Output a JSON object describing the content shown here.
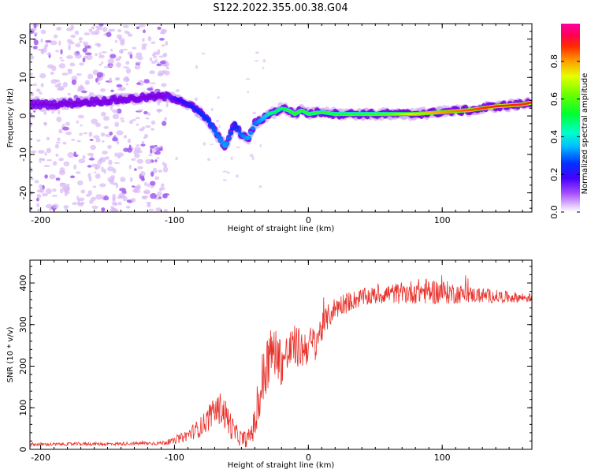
{
  "title": "S122.2022.355.00.38.G04",
  "colors": {
    "snr_line": "#e8302a",
    "spectrogram_low": "#d9b8f5",
    "spectrogram_mid": "#7a00e6",
    "ridge_peak": "#ff2020"
  },
  "chart_data": [
    {
      "type": "heatmap",
      "name": "spectrogram",
      "xlabel": "Height of straight line (km)",
      "ylabel": "Frequency (Hz)",
      "xlim": [
        -208,
        167
      ],
      "ylim": [
        -25,
        24
      ],
      "xticks": [
        -200,
        -100,
        0,
        100
      ],
      "yticks": [
        -20,
        -10,
        0,
        10,
        20
      ],
      "colorbar": {
        "label": "Normalized spectral amplitude",
        "ticks": [
          0.0,
          0.2,
          0.4,
          0.6,
          0.8
        ],
        "tick_labels": [
          "0.0",
          "0.2",
          "0.4",
          "0.6",
          "0.8"
        ],
        "range": [
          0,
          1
        ],
        "colormap": "hsv-like (purple-blue-cyan-green-yellow-red-magenta)"
      },
      "ridge": {
        "x": [
          -208,
          -190,
          -170,
          -150,
          -130,
          -115,
          -105,
          -95,
          -85,
          -75,
          -68,
          -62,
          -55,
          -50,
          -45,
          -40,
          -35,
          -30,
          -25,
          -20,
          -15,
          -10,
          -5,
          0,
          10,
          20,
          40,
          60,
          80,
          100,
          120,
          140,
          160,
          167
        ],
        "y": [
          3,
          3,
          3.5,
          4,
          4.5,
          5,
          5,
          4,
          2,
          -1,
          -5,
          -8,
          -2,
          -5,
          -6,
          -2,
          -1,
          0.5,
          1,
          2,
          1.5,
          0.5,
          1.5,
          0.5,
          1,
          0.5,
          0.5,
          0.5,
          0.5,
          1,
          1.5,
          2.5,
          3,
          3.5
        ],
        "amplitude": [
          0.05,
          0.05,
          0.08,
          0.1,
          0.12,
          0.15,
          0.2,
          0.25,
          0.3,
          0.35,
          0.4,
          0.45,
          0.3,
          0.4,
          0.45,
          0.4,
          0.45,
          0.5,
          0.5,
          0.5,
          0.55,
          0.55,
          0.55,
          0.55,
          0.55,
          0.55,
          0.55,
          0.6,
          0.75,
          0.8,
          0.85,
          0.9,
          0.9,
          0.9
        ]
      },
      "noise": {
        "x_range": [
          -208,
          -105
        ],
        "y_range": [
          -25,
          24
        ],
        "amplitude": 0.02
      }
    },
    {
      "type": "line",
      "name": "snr",
      "xlabel": "Height of straight line (km)",
      "ylabel": "SNR (10 * v/v)",
      "xlim": [
        -208,
        167
      ],
      "ylim": [
        0,
        455
      ],
      "xticks": [
        -200,
        -100,
        0,
        100
      ],
      "yticks": [
        0,
        100,
        200,
        300,
        400
      ],
      "series": [
        {
          "x": [
            -208,
            -190,
            -170,
            -150,
            -130,
            -110,
            -100,
            -90,
            -80,
            -70,
            -65,
            -60,
            -55,
            -50,
            -45,
            -40,
            -35,
            -30,
            -25,
            -20,
            -15,
            -10,
            -5,
            0,
            5,
            10,
            15,
            20,
            25,
            30,
            40,
            50,
            60,
            70,
            80,
            90,
            100,
            110,
            120,
            130,
            140,
            150,
            160,
            167
          ],
          "y": [
            12,
            12,
            13,
            13,
            14,
            15,
            20,
            35,
            55,
            90,
            100,
            70,
            40,
            25,
            25,
            60,
            150,
            220,
            240,
            210,
            230,
            250,
            240,
            250,
            260,
            290,
            320,
            340,
            350,
            355,
            365,
            370,
            375,
            375,
            380,
            380,
            378,
            375,
            372,
            370,
            368,
            366,
            365,
            365
          ],
          "noise": [
            4,
            4,
            4,
            4,
            4,
            5,
            8,
            15,
            25,
            35,
            40,
            40,
            25,
            20,
            20,
            40,
            80,
            70,
            60,
            60,
            55,
            50,
            50,
            45,
            40,
            35,
            30,
            28,
            26,
            24,
            22,
            22,
            24,
            26,
            30,
            32,
            30,
            25,
            20,
            18,
            16,
            14,
            12,
            12
          ]
        }
      ]
    }
  ]
}
